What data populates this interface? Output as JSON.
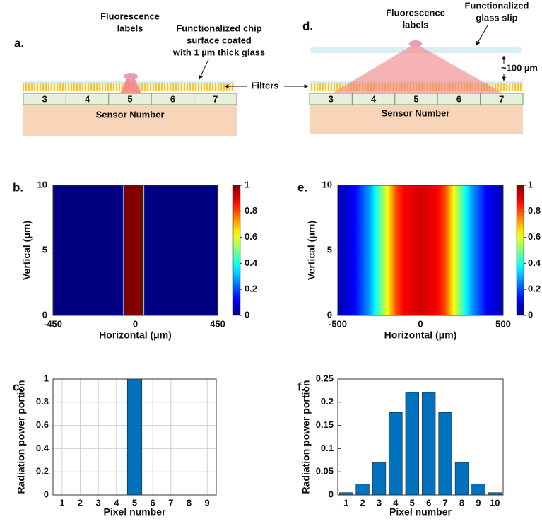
{
  "diagrams": {
    "a": {
      "label": "a.",
      "fluorescence_labels": [
        "Fluorescence",
        "labels"
      ],
      "surface": [
        "Functionalized chip",
        "surface coated",
        "with 1 µm thick glass"
      ],
      "sensors": [
        "3",
        "4",
        "5",
        "6",
        "7"
      ],
      "sensor_title": "Sensor Number"
    },
    "filters": "Filters",
    "d": {
      "label": "d.",
      "fluorescence_labels": [
        "Fluorescence",
        "labels"
      ],
      "slip": [
        "Functionalized",
        "glass slip"
      ],
      "gap": "~100 µm",
      "sensors": [
        "3",
        "4",
        "5",
        "6",
        "7"
      ],
      "sensor_title": "Sensor Number"
    }
  },
  "chart_data": [
    {
      "type": "heatmap",
      "label": "b.",
      "xlabel": "Horizontal (μm)",
      "ylabel": "Vertical (μm)",
      "x": [
        -450,
        -70,
        -65,
        -60,
        40,
        45,
        50,
        450
      ],
      "values": [
        0,
        0,
        0.5,
        1,
        1,
        0.5,
        0,
        0
      ],
      "xlim": [
        -450,
        450
      ],
      "xticks": [
        -450,
        0,
        450
      ],
      "ylim": [
        0,
        10
      ],
      "yticks": [
        0,
        5,
        10
      ],
      "clim": [
        0,
        1
      ],
      "cticks": [
        0,
        0.2,
        0.4,
        0.6,
        0.8,
        1
      ]
    },
    {
      "type": "heatmap",
      "label": "e.",
      "xlabel": "Horizontal (μm)",
      "ylabel": "Vertical (μm)",
      "x": [
        -500,
        -400,
        -300,
        -250,
        -200,
        -150,
        -100,
        0,
        100,
        150,
        200,
        250,
        300,
        400,
        500
      ],
      "values": [
        0.05,
        0.12,
        0.3,
        0.45,
        0.62,
        0.8,
        0.88,
        0.92,
        0.88,
        0.8,
        0.62,
        0.45,
        0.3,
        0.12,
        0.05
      ],
      "xlim": [
        -500,
        500
      ],
      "xticks": [
        -500,
        0,
        500
      ],
      "ylim": [
        0,
        10
      ],
      "yticks": [
        0,
        5,
        10
      ],
      "clim": [
        0,
        1
      ],
      "cticks": [
        0,
        0.2,
        0.4,
        0.6,
        0.8,
        1
      ]
    },
    {
      "type": "bar",
      "label": "c.",
      "xlabel": "Pixel number",
      "ylabel": "Radiation power portion",
      "categories": [
        "1",
        "2",
        "3",
        "4",
        "5",
        "6",
        "7",
        "8",
        "9"
      ],
      "values": [
        0,
        0,
        0,
        0,
        1,
        0,
        0,
        0,
        0
      ],
      "color": "#0072bd",
      "ylim": [
        0,
        1
      ],
      "yticks": [
        0,
        0.2,
        0.4,
        0.6,
        0.8,
        1
      ],
      "grid": true
    },
    {
      "type": "bar",
      "label": "f.",
      "xlabel": "Pixel number",
      "ylabel": "Radiation power portion",
      "categories": [
        "1",
        "2",
        "3",
        "4",
        "5",
        "6",
        "7",
        "8",
        "9",
        "10"
      ],
      "values": [
        0.005,
        0.024,
        0.07,
        0.178,
        0.221,
        0.221,
        0.178,
        0.07,
        0.024,
        0.005
      ],
      "color": "#0072bd",
      "ylim": [
        0,
        0.25
      ],
      "yticks": [
        0,
        0.05,
        0.1,
        0.15,
        0.2,
        0.25
      ],
      "grid": false
    }
  ]
}
